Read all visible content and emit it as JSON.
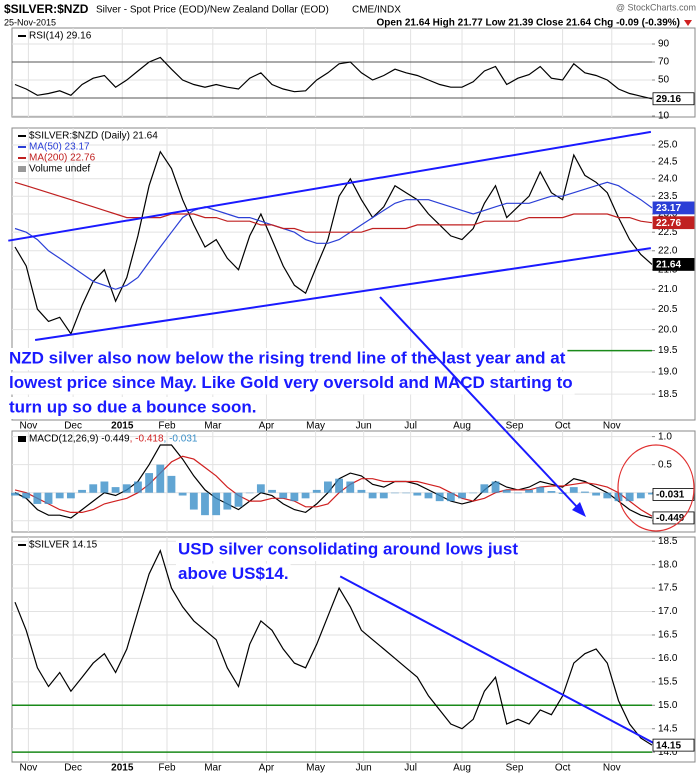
{
  "header": {
    "symbol": "$SILVER:$NZD",
    "description": "Silver - Spot Price (EOD)/New Zealand Dollar (EOD)",
    "exchange": "CME/INDX",
    "date": "25-Nov-2015",
    "source": "@ StockCharts.com",
    "quote": "Open 21.64 High 21.77 Low 21.39 Close 21.64 Chg -0.09 (-0.39%)"
  },
  "chart_data": [
    {
      "type": "line",
      "xlim": [
        0,
        57
      ],
      "ylim": [
        8.9,
        107.8
      ],
      "yticks": [
        10,
        30,
        50,
        70,
        90
      ],
      "grid": true,
      "hlines": [
        {
          "value": 70,
          "color": "#555555"
        },
        {
          "value": 30,
          "color": "#555555"
        }
      ],
      "series": [
        {
          "name": "RSI(14) 29.16",
          "color": "#000000",
          "end_label": "29.16",
          "values": [
            45,
            40,
            33,
            35,
            38,
            33,
            45,
            52,
            55,
            42,
            50,
            60,
            70,
            75,
            62,
            50,
            45,
            42,
            45,
            42,
            40,
            52,
            58,
            45,
            40,
            37,
            38,
            50,
            58,
            68,
            70,
            58,
            50,
            55,
            62,
            58,
            55,
            50,
            45,
            42,
            42,
            48,
            60,
            65,
            45,
            52,
            56,
            65,
            52,
            50,
            68,
            58,
            55,
            50,
            40,
            35,
            32,
            29.16
          ]
        }
      ]
    },
    {
      "type": "line",
      "log_scale": true,
      "xlim": [
        0,
        57
      ],
      "ylim": [
        17.93,
        25.52
      ],
      "grid": true,
      "filled_end_labels": true,
      "yticks": [
        {
          "value": 18.5,
          "label": "18.5"
        },
        {
          "value": 19.0,
          "label": "19.0"
        },
        {
          "value": 19.5,
          "label": "19.5"
        },
        {
          "value": 20.0,
          "label": "20.0"
        },
        {
          "value": 20.5,
          "label": "20.5"
        },
        {
          "value": 21.0,
          "label": "21.0"
        },
        {
          "value": 21.5,
          "label": "21.5"
        },
        {
          "value": 22.0,
          "label": "22.0"
        },
        {
          "value": 22.5,
          "label": "22.5"
        },
        {
          "value": 23.0,
          "label": "23.0"
        },
        {
          "value": 23.5,
          "label": "23.5"
        },
        {
          "value": 24.0,
          "label": "24.0"
        },
        {
          "value": 24.5,
          "label": "24.5"
        },
        {
          "value": 25.0,
          "label": "25.0"
        }
      ],
      "xticks": [
        {
          "value": 1.2,
          "label": "Nov"
        },
        {
          "value": 5.2,
          "label": "Dec"
        },
        {
          "value": 9.6,
          "label": "2015"
        },
        {
          "value": 13.6,
          "label": "Feb"
        },
        {
          "value": 17.7,
          "label": "Mar"
        },
        {
          "value": 22.5,
          "label": "Apr"
        },
        {
          "value": 26.9,
          "label": "May"
        },
        {
          "value": 31.2,
          "label": "Jun"
        },
        {
          "value": 35.4,
          "label": "Jul"
        },
        {
          "value": 40,
          "label": "Aug"
        },
        {
          "value": 44.7,
          "label": "Sep"
        },
        {
          "value": 49,
          "label": "Oct"
        },
        {
          "value": 53.4,
          "label": "Nov"
        }
      ],
      "legend_extra": "Volume undef",
      "series": [
        {
          "name": "$SILVER:$NZD (Daily) 21.64",
          "color": "#000000",
          "end_label": "21.64",
          "values": [
            22.1,
            21.6,
            20.5,
            20.2,
            20.3,
            19.9,
            20.6,
            21.2,
            21.5,
            20.7,
            21.3,
            22.4,
            23.8,
            24.8,
            24.3,
            23.4,
            22.7,
            22.1,
            22.3,
            21.8,
            21.5,
            22.4,
            23.0,
            22.3,
            21.6,
            21.1,
            20.9,
            21.6,
            22.3,
            23.5,
            24.0,
            23.4,
            22.9,
            23.2,
            23.8,
            23.6,
            23.4,
            23.0,
            22.7,
            22.4,
            22.3,
            22.6,
            23.3,
            23.8,
            22.9,
            23.2,
            23.5,
            24.2,
            23.6,
            23.4,
            24.7,
            24.1,
            23.9,
            23.6,
            22.9,
            22.3,
            21.9,
            21.64
          ]
        },
        {
          "name": "MA(50) 23.17",
          "color": "#2b3fd6",
          "end_label": "23.17",
          "values": [
            22.6,
            22.5,
            22.3,
            22.0,
            21.8,
            21.6,
            21.4,
            21.2,
            21.1,
            21.0,
            21.1,
            21.3,
            21.7,
            22.1,
            22.5,
            22.9,
            23.1,
            23.2,
            23.1,
            23.0,
            22.9,
            22.9,
            22.8,
            22.7,
            22.6,
            22.5,
            22.3,
            22.2,
            22.2,
            22.3,
            22.5,
            22.7,
            22.9,
            23.1,
            23.3,
            23.4,
            23.4,
            23.4,
            23.3,
            23.2,
            23.1,
            23.0,
            23.1,
            23.2,
            23.3,
            23.3,
            23.3,
            23.4,
            23.5,
            23.5,
            23.6,
            23.7,
            23.8,
            23.9,
            23.8,
            23.6,
            23.4,
            23.17
          ]
        },
        {
          "name": "MA(200) 22.76",
          "color": "#c02020",
          "end_label": "22.76",
          "values": [
            23.9,
            23.8,
            23.7,
            23.6,
            23.5,
            23.4,
            23.3,
            23.2,
            23.1,
            23.0,
            22.9,
            22.9,
            22.9,
            22.9,
            23.0,
            23.0,
            23.0,
            22.9,
            22.9,
            22.8,
            22.8,
            22.8,
            22.7,
            22.7,
            22.6,
            22.6,
            22.5,
            22.5,
            22.5,
            22.5,
            22.5,
            22.5,
            22.6,
            22.6,
            22.6,
            22.6,
            22.7,
            22.7,
            22.7,
            22.7,
            22.7,
            22.7,
            22.8,
            22.8,
            22.8,
            22.8,
            22.9,
            22.9,
            22.9,
            22.9,
            23.0,
            23.0,
            23.0,
            23.0,
            22.9,
            22.9,
            22.8,
            22.76
          ]
        }
      ],
      "trend_lines": [
        {
          "color": "#1a1aff",
          "x": [
            -0.6,
            56.9
          ],
          "values": [
            22.27,
            25.4
          ]
        },
        {
          "color": "#1a1aff",
          "x": [
            1.8,
            56.9
          ],
          "values": [
            19.75,
            22.07
          ]
        }
      ],
      "hlines": [
        {
          "value": 19.5,
          "color": "#1a8a1a"
        }
      ],
      "annotation": [
        "NZD silver also now below the rising trend line of the last year and at",
        "lowest price since May. Like Gold very oversold and MACD starting to",
        "turn up so due a bounce soon."
      ]
    },
    {
      "type": "line",
      "xlim": [
        0,
        57
      ],
      "ylim": [
        -0.7,
        1.1
      ],
      "grid": true,
      "legend_inline": true,
      "yticks": [
        {
          "value": 1.0,
          "label": "1.0"
        },
        {
          "value": 0.5,
          "label": "0.5"
        },
        {
          "value": 0.0,
          "label": "0.0"
        },
        {
          "value": -0.5,
          "label": "-0.5"
        }
      ],
      "series": [
        {
          "name": "MACD(12,26,9) -0.449",
          "color": "#000000",
          "end_label": "-0.449",
          "values": [
            0.0,
            -0.1,
            -0.3,
            -0.4,
            -0.4,
            -0.45,
            -0.3,
            -0.15,
            0.0,
            -0.05,
            0.05,
            0.2,
            0.5,
            0.85,
            0.85,
            0.6,
            0.3,
            0.05,
            -0.1,
            -0.2,
            -0.3,
            -0.15,
            0.0,
            -0.05,
            -0.2,
            -0.3,
            -0.35,
            -0.2,
            0.0,
            0.25,
            0.35,
            0.3,
            0.15,
            0.1,
            0.2,
            0.2,
            0.15,
            0.05,
            -0.05,
            -0.15,
            -0.2,
            -0.15,
            0.05,
            0.2,
            0.1,
            0.05,
            0.1,
            0.2,
            0.15,
            0.1,
            0.25,
            0.2,
            0.1,
            0.0,
            -0.15,
            -0.3,
            -0.4,
            -0.449
          ]
        },
        {
          "name": ", -0.418",
          "color": "#d02020",
          "values": [
            0.05,
            0.0,
            -0.1,
            -0.2,
            -0.3,
            -0.35,
            -0.35,
            -0.3,
            -0.2,
            -0.15,
            -0.1,
            0.0,
            0.15,
            0.35,
            0.55,
            0.65,
            0.6,
            0.45,
            0.3,
            0.1,
            -0.05,
            -0.15,
            -0.15,
            -0.1,
            -0.1,
            -0.15,
            -0.25,
            -0.25,
            -0.2,
            0.0,
            0.15,
            0.25,
            0.25,
            0.2,
            0.2,
            0.2,
            0.2,
            0.15,
            0.1,
            0.0,
            -0.1,
            -0.15,
            -0.1,
            0.0,
            0.05,
            0.05,
            0.05,
            0.1,
            0.12,
            0.12,
            0.15,
            0.18,
            0.15,
            0.1,
            0.0,
            -0.15,
            -0.3,
            -0.418
          ]
        },
        {
          "name": ", -0.031",
          "color": "#3a8fc8",
          "type": "bar",
          "end_label": "-0.031",
          "values": [
            -0.05,
            -0.1,
            -0.2,
            -0.2,
            -0.1,
            -0.1,
            0.05,
            0.15,
            0.2,
            0.1,
            0.15,
            0.2,
            0.35,
            0.5,
            0.3,
            -0.05,
            -0.3,
            -0.4,
            -0.4,
            -0.3,
            -0.25,
            0.0,
            0.15,
            0.05,
            -0.1,
            -0.15,
            -0.1,
            0.05,
            0.2,
            0.25,
            0.2,
            0.05,
            -0.1,
            -0.1,
            0.0,
            0.0,
            -0.05,
            -0.1,
            -0.15,
            -0.15,
            -0.1,
            0.0,
            0.15,
            0.2,
            0.05,
            0.0,
            0.05,
            0.1,
            0.03,
            -0.02,
            0.1,
            0.02,
            -0.05,
            -0.1,
            -0.15,
            -0.15,
            -0.1,
            -0.031
          ]
        }
      ]
    },
    {
      "type": "line",
      "xlim": [
        0,
        57
      ],
      "ylim": [
        13.79,
        18.59
      ],
      "grid": true,
      "yticks": [
        {
          "value": 14.0,
          "label": "14.0"
        },
        {
          "value": 14.5,
          "label": "14.5"
        },
        {
          "value": 15.0,
          "label": "15.0"
        },
        {
          "value": 15.5,
          "label": "15.5"
        },
        {
          "value": 16.0,
          "label": "16.0"
        },
        {
          "value": 16.5,
          "label": "16.5"
        },
        {
          "value": 17.0,
          "label": "17.0"
        },
        {
          "value": 17.5,
          "label": "17.5"
        },
        {
          "value": 18.0,
          "label": "18.0"
        },
        {
          "value": 18.5,
          "label": "18.5"
        }
      ],
      "xticks": [
        {
          "value": 1.2,
          "label": "Nov"
        },
        {
          "value": 5.2,
          "label": "Dec"
        },
        {
          "value": 9.6,
          "label": "2015"
        },
        {
          "value": 13.6,
          "label": "Feb"
        },
        {
          "value": 17.7,
          "label": "Mar"
        },
        {
          "value": 22.5,
          "label": "Apr"
        },
        {
          "value": 26.9,
          "label": "May"
        },
        {
          "value": 31.2,
          "label": "Jun"
        },
        {
          "value": 35.4,
          "label": "Jul"
        },
        {
          "value": 40,
          "label": "Aug"
        },
        {
          "value": 44.7,
          "label": "Sep"
        },
        {
          "value": 49,
          "label": "Oct"
        },
        {
          "value": 53.4,
          "label": "Nov"
        }
      ],
      "series": [
        {
          "name": "$SILVER 14.15",
          "color": "#000000",
          "end_label": "14.15",
          "values": [
            17.2,
            16.6,
            15.8,
            15.4,
            15.7,
            15.3,
            15.6,
            15.9,
            16.1,
            15.7,
            16.2,
            17.0,
            17.8,
            18.3,
            17.5,
            17.1,
            16.8,
            16.6,
            16.4,
            15.8,
            15.4,
            16.3,
            16.8,
            16.6,
            16.2,
            15.9,
            15.8,
            16.3,
            16.9,
            17.5,
            17.1,
            16.6,
            16.4,
            16.2,
            16.0,
            15.8,
            15.6,
            15.2,
            14.9,
            14.6,
            14.5,
            14.7,
            15.3,
            15.6,
            14.6,
            14.7,
            14.6,
            14.9,
            14.8,
            15.2,
            15.9,
            16.1,
            16.2,
            15.9,
            15.1,
            14.6,
            14.3,
            14.15
          ]
        }
      ],
      "trend_lines": [
        {
          "color": "#1a1aff",
          "x": [
            29.1,
            57.9
          ],
          "values": [
            17.75,
            14.1
          ]
        }
      ],
      "hlines": [
        {
          "value": 15.0,
          "color": "#1a8a1a"
        },
        {
          "value": 14.0,
          "color": "#1a8a1a"
        }
      ],
      "annotation": [
        "USD silver consolidating around lows just",
        "above US$14."
      ]
    }
  ]
}
